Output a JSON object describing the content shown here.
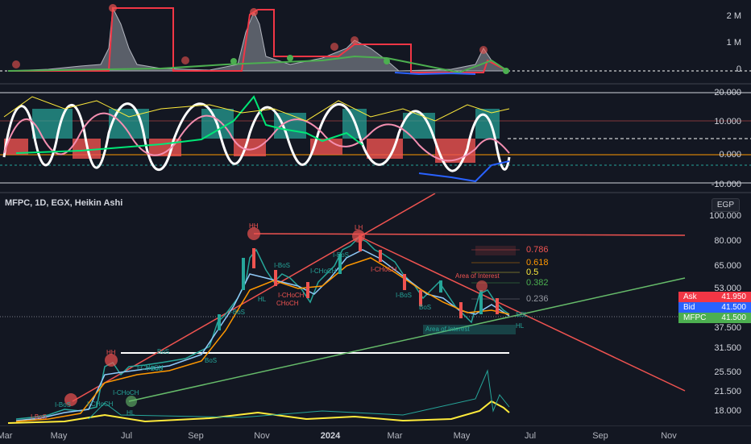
{
  "header": {
    "symbol_title": "MFPC, 1D, EGX, Heikin Ashi",
    "currency": "EGP"
  },
  "volume_pane": {
    "axis": [
      "2 M",
      "1 M",
      "0"
    ]
  },
  "osc_pane": {
    "axis": [
      "20.000",
      "10.000",
      "0.000",
      "-10.000"
    ]
  },
  "price_axis": [
    "100.000",
    "80.000",
    "65.000",
    "53.000",
    "37.500",
    "31.500",
    "25.500",
    "21.500",
    "18.000"
  ],
  "price_tags": [
    {
      "name": "Ask",
      "value": "41.950",
      "color": "#f23645"
    },
    {
      "name": "Bid",
      "value": "41.500",
      "color": "#2962ff"
    },
    {
      "name": "MFPC",
      "value": "41.500",
      "color": "#4caf50"
    }
  ],
  "fib_levels": [
    {
      "label": "0.786",
      "color": "#ef5350"
    },
    {
      "label": "0.618",
      "color": "#ff9800"
    },
    {
      "label": "0.5",
      "color": "#ffeb3b"
    },
    {
      "label": "0.382",
      "color": "#4caf50"
    },
    {
      "label": "0.236",
      "color": "#9598a1"
    }
  ],
  "annotations": {
    "hh1": "HH",
    "hh2": "HH",
    "lh": "LH",
    "poi_top": "Area of Interest",
    "poi_bottom": "Area of Interest",
    "hl1": "HL",
    "hl2": "HL",
    "hl3": "HL",
    "bos": [
      "BoS",
      "I-BoS",
      "I-BoS",
      "I-BoS",
      "I-BoS",
      "I-BoS",
      "I-BoS",
      "BoS",
      "BoS",
      "I-BoS"
    ],
    "choch": [
      "I-CHoCH",
      "I-CHoCH",
      "I-CHoCH",
      "CHoCH",
      "I-CHoCH",
      "I-CHoCH",
      "I-CHoCH"
    ],
    "ssl": "SSL"
  },
  "time_axis": [
    {
      "label": "Mar",
      "bold": false
    },
    {
      "label": "May",
      "bold": false
    },
    {
      "label": "Jul",
      "bold": false
    },
    {
      "label": "Sep",
      "bold": false
    },
    {
      "label": "Nov",
      "bold": false
    },
    {
      "label": "2024",
      "bold": true
    },
    {
      "label": "Mar",
      "bold": false
    },
    {
      "label": "May",
      "bold": false
    },
    {
      "label": "Jul",
      "bold": false
    },
    {
      "label": "Sep",
      "bold": false
    },
    {
      "label": "Nov",
      "bold": false
    }
  ],
  "colors": {
    "bg": "#131722",
    "up": "#26a69a",
    "down": "#ef5350",
    "grid": "#1e222d"
  }
}
